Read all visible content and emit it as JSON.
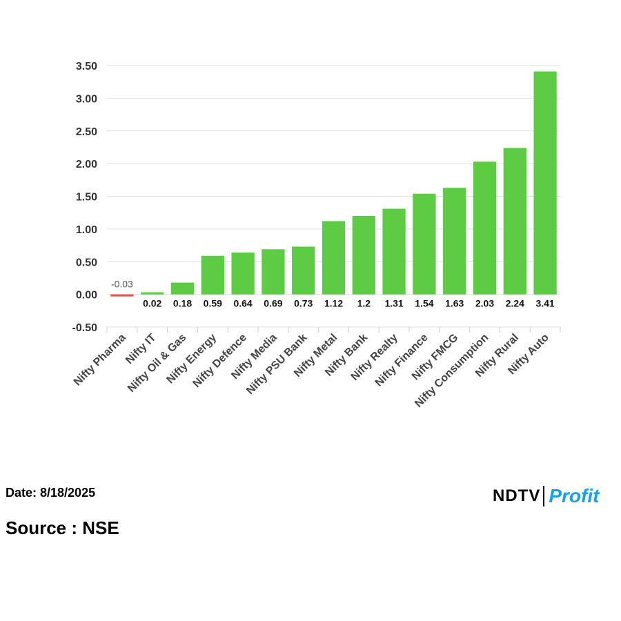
{
  "chart_data": {
    "type": "bar",
    "categories": [
      "Nifty Pharma",
      "Nifty IT",
      "Nifty Oil & Gas",
      "Nifty Energy",
      "Nifty Defence",
      "Nifty Media",
      "Nifty PSU Bank",
      "Nifty Metal",
      "Nifty Bank",
      "Nifty Realty",
      "Nifty Finance",
      "Nifty FMCG",
      "Nifty Consumption",
      "Nifty Rural",
      "Nifty Auto"
    ],
    "values": [
      -0.03,
      0.02,
      0.18,
      0.59,
      0.64,
      0.69,
      0.73,
      1.12,
      1.2,
      1.31,
      1.54,
      1.63,
      2.03,
      2.24,
      3.41
    ],
    "value_labels": [
      "-0.03",
      "0.02",
      "0.18",
      "0.59",
      "0.64",
      "0.69",
      "0.73",
      "1.12",
      "1.2",
      "1.31",
      "1.54",
      "1.63",
      "2.03",
      "2.24",
      "3.41"
    ],
    "ylim": [
      -0.5,
      3.5
    ],
    "y_ticks": [
      "3.50",
      "3.00",
      "2.50",
      "2.00",
      "1.50",
      "1.00",
      "0.50",
      "0.00",
      "-0.50"
    ],
    "y_tick_values": [
      3.5,
      3.0,
      2.5,
      2.0,
      1.5,
      1.0,
      0.5,
      0.0,
      -0.5
    ],
    "grid": true,
    "colors": {
      "positive": "#5ecb45",
      "negative": "#e8504a",
      "grid": "#e0e0e0"
    }
  },
  "footer": {
    "date": "Date: 8/18/2025",
    "source": "Source : NSE"
  },
  "logo": {
    "ndtv": "NDTV",
    "profit": "Profit"
  }
}
